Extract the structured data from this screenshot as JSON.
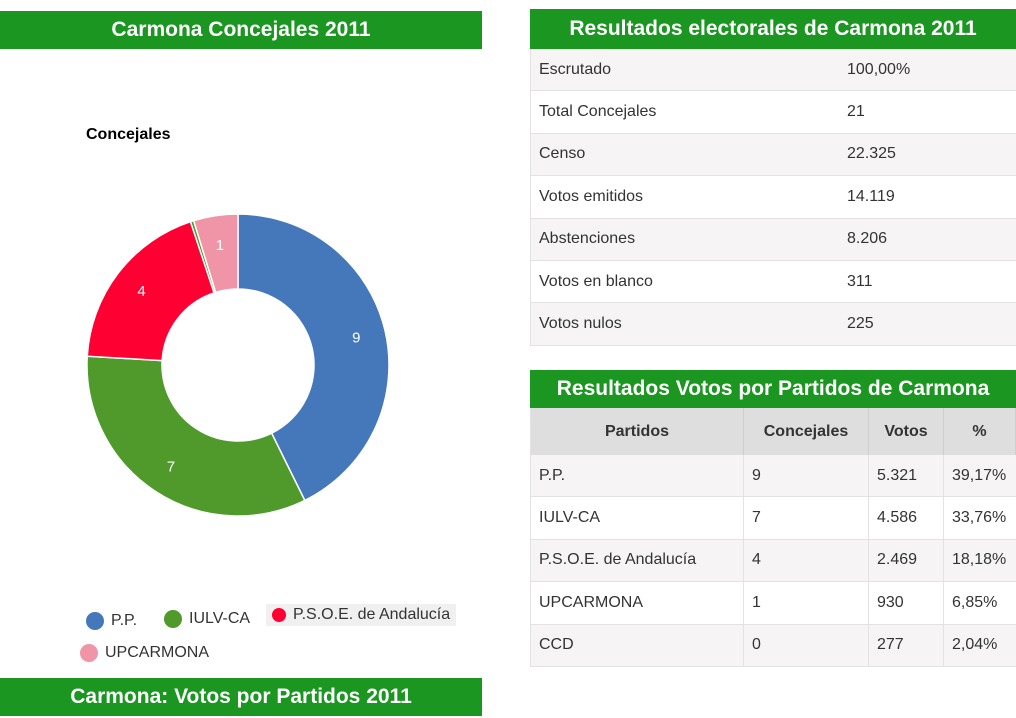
{
  "left_panel": {
    "title": "Carmona Concejales 2011",
    "bottom_title": "Carmona: Votos por Partidos 2011"
  },
  "chart_data": {
    "type": "pie",
    "title": "Concejales",
    "donut": true,
    "categories": [
      "P.P.",
      "IULV-CA",
      "P.S.O.E. de Andalucía",
      "CCD",
      "UPCARMONA"
    ],
    "values": [
      9,
      7,
      4,
      0,
      1
    ],
    "colors": [
      "#4577bb",
      "#4f9a2a",
      "#ff0033",
      "#4f9a2a",
      "#f095a8"
    ],
    "legend": [
      "P.P.",
      "IULV-CA",
      "P.S.O.E. de Andalucía",
      "UPCARMONA"
    ],
    "legend_placement": "bottom"
  },
  "results": {
    "title": "Resultados electorales de Carmona 2011",
    "rows": [
      {
        "label": "Escrutado",
        "value": "100,00%"
      },
      {
        "label": "Total Concejales",
        "value": "21"
      },
      {
        "label": "Censo",
        "value": "22.325"
      },
      {
        "label": "Votos emitidos",
        "value": "14.119"
      },
      {
        "label": "Abstenciones",
        "value": "8.206"
      },
      {
        "label": "Votos en blanco",
        "value": "311"
      },
      {
        "label": "Votos nulos",
        "value": "225"
      }
    ]
  },
  "party_results": {
    "title": "Resultados Votos por Partidos de Carmona",
    "headers": [
      "Partidos",
      "Concejales",
      "Votos",
      "%"
    ],
    "rows": [
      {
        "party": "P.P.",
        "concejales": "9",
        "votos": "5.321",
        "pct": "39,17%"
      },
      {
        "party": "IULV-CA",
        "concejales": "7",
        "votos": "4.586",
        "pct": "33,76%"
      },
      {
        "party": "P.S.O.E. de Andalucía",
        "concejales": "4",
        "votos": "2.469",
        "pct": "18,18%"
      },
      {
        "party": "UPCARMONA",
        "concejales": "1",
        "votos": "930",
        "pct": "6,85%"
      },
      {
        "party": "CCD",
        "concejales": "0",
        "votos": "277",
        "pct": "2,04%"
      }
    ]
  }
}
